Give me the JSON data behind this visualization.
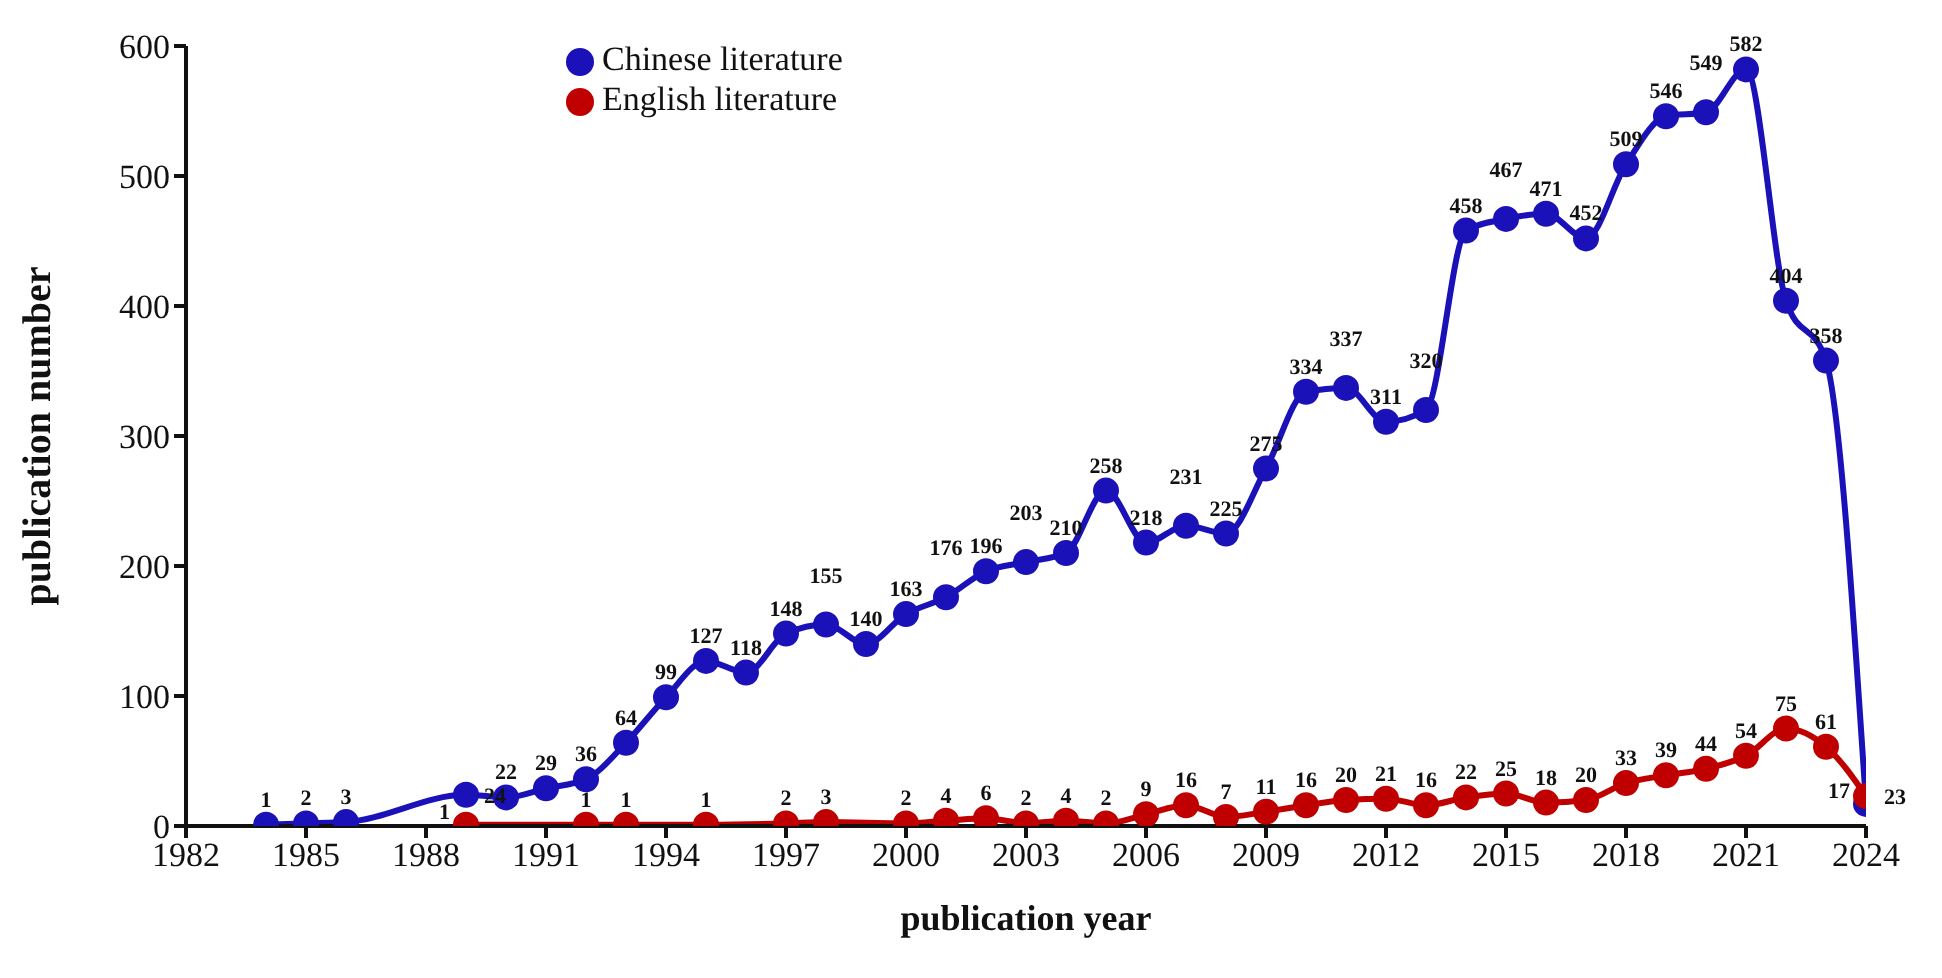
{
  "chart_data": {
    "type": "line",
    "xlabel": "publication year",
    "ylabel": "publication number",
    "xlim": [
      1982,
      2024
    ],
    "xticks": [
      1982,
      1985,
      1988,
      1991,
      1994,
      1997,
      2000,
      2003,
      2006,
      2009,
      2012,
      2015,
      2018,
      2021,
      2024
    ],
    "ylim": [
      0,
      600
    ],
    "yticks": [
      0,
      100,
      200,
      300,
      400,
      500,
      600
    ],
    "series": [
      {
        "name": "Chinese literature",
        "color": "#1a12b8",
        "x": [
          1984,
          1985,
          1986,
          1989,
          1990,
          1991,
          1992,
          1993,
          1994,
          1995,
          1996,
          1997,
          1998,
          1999,
          2000,
          2001,
          2002,
          2003,
          2004,
          2005,
          2006,
          2007,
          2008,
          2009,
          2010,
          2011,
          2012,
          2013,
          2014,
          2015,
          2016,
          2017,
          2018,
          2019,
          2020,
          2021,
          2022,
          2023,
          2024
        ],
        "values": [
          1,
          2,
          3,
          24,
          22,
          29,
          36,
          64,
          99,
          127,
          118,
          148,
          155,
          140,
          163,
          176,
          196,
          203,
          210,
          258,
          218,
          231,
          225,
          275,
          334,
          337,
          311,
          320,
          458,
          467,
          471,
          452,
          509,
          546,
          549,
          582,
          404,
          358,
          17
        ]
      },
      {
        "name": "English literature",
        "color": "#c00000",
        "x": [
          1989,
          1992,
          1993,
          1995,
          1997,
          1998,
          2000,
          2001,
          2002,
          2003,
          2004,
          2005,
          2006,
          2007,
          2008,
          2009,
          2010,
          2011,
          2012,
          2013,
          2014,
          2015,
          2016,
          2017,
          2018,
          2019,
          2020,
          2021,
          2022,
          2023,
          2024
        ],
        "values": [
          1,
          1,
          1,
          1,
          2,
          3,
          2,
          4,
          6,
          2,
          4,
          2,
          9,
          16,
          7,
          11,
          16,
          20,
          21,
          16,
          22,
          25,
          18,
          20,
          33,
          39,
          44,
          54,
          75,
          61,
          23
        ]
      }
    ],
    "data_labels": true,
    "marker": "circle",
    "line_style": "solid",
    "grid": false,
    "legend": "top left"
  }
}
